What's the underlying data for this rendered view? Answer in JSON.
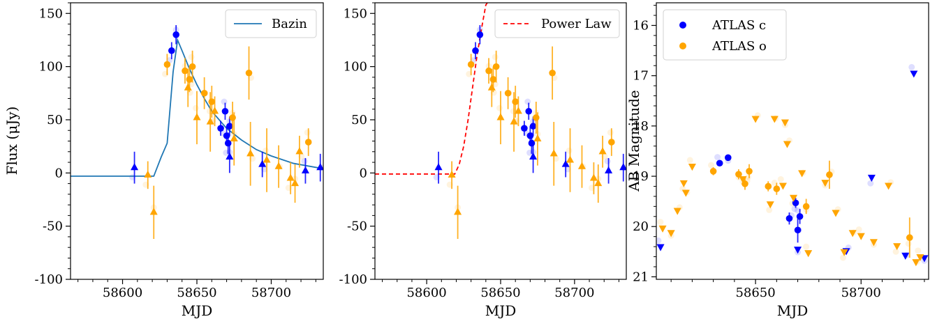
{
  "colors": {
    "atlas_c": "#0000ff",
    "atlas_o": "#ffa500",
    "bazin": "#1f77b4",
    "power_law": "#ff0000"
  },
  "chart_data": [
    {
      "type": "scatter",
      "xlabel": "MJD",
      "ylabel": "Flux (μJy)",
      "xlim": [
        58565,
        58735
      ],
      "ylim": [
        -100,
        160
      ],
      "xticks": [
        58600,
        58650,
        58700
      ],
      "yticks": [
        -100,
        -50,
        0,
        50,
        100,
        150
      ],
      "legend": {
        "position": "top-right",
        "entries": [
          "Bazin"
        ]
      },
      "model": {
        "name": "Bazin",
        "style": "solid",
        "color": "#1f77b4",
        "x": [
          58565,
          58580,
          58600,
          58615,
          58621,
          58626,
          58630,
          58634,
          58637,
          58640,
          58645,
          58650,
          58655,
          58660,
          58670,
          58680,
          58690,
          58700,
          58715,
          58735
        ],
        "y": [
          -3,
          -3,
          -3,
          -3,
          -3,
          15,
          28,
          95,
          125,
          115,
          98,
          83,
          70,
          58,
          42,
          31,
          22,
          16,
          9,
          4
        ]
      },
      "series": [
        {
          "name": "ATLAS c",
          "color": "#0000ff",
          "marker": "circle",
          "points": [
            {
              "x": 58633,
              "y": 115,
              "err": 8
            },
            {
              "x": 58636,
              "y": 130,
              "err": 9
            },
            {
              "x": 58666,
              "y": 42,
              "err": 7
            },
            {
              "x": 58669,
              "y": 58,
              "err": 8
            },
            {
              "x": 58670,
              "y": 35,
              "err": 9
            },
            {
              "x": 58671,
              "y": 28,
              "err": 10
            },
            {
              "x": 58672,
              "y": 44,
              "err": 9
            }
          ]
        },
        {
          "name": "ATLAS c upper limits",
          "color": "#0000ff",
          "marker": "triangle",
          "points": [
            {
              "x": 58608,
              "y": 5,
              "err": 15
            },
            {
              "x": 58672,
              "y": 15,
              "err": 15
            },
            {
              "x": 58694,
              "y": 8,
              "err": 12
            },
            {
              "x": 58723,
              "y": 2,
              "err": 12
            },
            {
              "x": 58733,
              "y": 5,
              "err": 13
            }
          ]
        },
        {
          "name": "ATLAS o",
          "color": "#ffa500",
          "marker": "circle",
          "points": [
            {
              "x": 58630,
              "y": 102,
              "err": 10
            },
            {
              "x": 58642,
              "y": 96,
              "err": 12
            },
            {
              "x": 58645,
              "y": 88,
              "err": 12
            },
            {
              "x": 58647,
              "y": 100,
              "err": 15
            },
            {
              "x": 58655,
              "y": 75,
              "err": 15
            },
            {
              "x": 58660,
              "y": 67,
              "err": 15
            },
            {
              "x": 58674,
              "y": 52,
              "err": 15
            },
            {
              "x": 58685,
              "y": 94,
              "err": 25
            },
            {
              "x": 58725,
              "y": 29,
              "err": 13
            }
          ]
        },
        {
          "name": "ATLAS o upper limits",
          "color": "#ffa500",
          "marker": "triangle",
          "points": [
            {
              "x": 58617,
              "y": -2,
              "err": 13
            },
            {
              "x": 58621,
              "y": -37,
              "err": 25
            },
            {
              "x": 58644,
              "y": 80,
              "err": 18
            },
            {
              "x": 58650,
              "y": 52,
              "err": 25
            },
            {
              "x": 58659,
              "y": 48,
              "err": 28
            },
            {
              "x": 58662,
              "y": 58,
              "err": 14
            },
            {
              "x": 58675,
              "y": 32,
              "err": 25
            },
            {
              "x": 58686,
              "y": 18,
              "err": 30
            },
            {
              "x": 58697,
              "y": 12,
              "err": 30
            },
            {
              "x": 58705,
              "y": 6,
              "err": 20
            },
            {
              "x": 58713,
              "y": -5,
              "err": 15
            },
            {
              "x": 58716,
              "y": -10,
              "err": 18
            },
            {
              "x": 58719,
              "y": 20,
              "err": 15
            }
          ]
        }
      ]
    },
    {
      "type": "scatter",
      "xlabel": "MJD",
      "ylabel": "",
      "xlim": [
        58565,
        58735
      ],
      "ylim": [
        -100,
        160
      ],
      "xticks": [
        58600,
        58650,
        58700
      ],
      "yticks": [
        -100,
        -50,
        0,
        50,
        100,
        150
      ],
      "legend": {
        "position": "top-right",
        "entries": [
          "Power Law"
        ]
      },
      "model": {
        "name": "Power Law",
        "style": "dashed",
        "color": "#ff0000",
        "x": [
          58565,
          58590,
          58610,
          58619,
          58622,
          58625,
          58628,
          58631,
          58634,
          58637,
          58640,
          58641
        ],
        "y": [
          -1,
          -1,
          -1,
          -1,
          8,
          25,
          50,
          80,
          110,
          135,
          158,
          160
        ]
      },
      "series": [
        {
          "name": "ATLAS c",
          "color": "#0000ff",
          "marker": "circle",
          "points": [
            {
              "x": 58633,
              "y": 115,
              "err": 8
            },
            {
              "x": 58636,
              "y": 130,
              "err": 9
            },
            {
              "x": 58666,
              "y": 42,
              "err": 7
            },
            {
              "x": 58669,
              "y": 58,
              "err": 8
            },
            {
              "x": 58670,
              "y": 35,
              "err": 9
            },
            {
              "x": 58671,
              "y": 28,
              "err": 10
            },
            {
              "x": 58672,
              "y": 44,
              "err": 9
            }
          ]
        },
        {
          "name": "ATLAS c upper limits",
          "color": "#0000ff",
          "marker": "triangle",
          "points": [
            {
              "x": 58608,
              "y": 5,
              "err": 15
            },
            {
              "x": 58672,
              "y": 15,
              "err": 15
            },
            {
              "x": 58694,
              "y": 8,
              "err": 12
            },
            {
              "x": 58723,
              "y": 2,
              "err": 12
            },
            {
              "x": 58733,
              "y": 5,
              "err": 13
            }
          ]
        },
        {
          "name": "ATLAS o",
          "color": "#ffa500",
          "marker": "circle",
          "points": [
            {
              "x": 58630,
              "y": 102,
              "err": 10
            },
            {
              "x": 58642,
              "y": 96,
              "err": 12
            },
            {
              "x": 58645,
              "y": 88,
              "err": 12
            },
            {
              "x": 58647,
              "y": 100,
              "err": 15
            },
            {
              "x": 58655,
              "y": 75,
              "err": 15
            },
            {
              "x": 58660,
              "y": 67,
              "err": 15
            },
            {
              "x": 58674,
              "y": 52,
              "err": 15
            },
            {
              "x": 58685,
              "y": 94,
              "err": 25
            },
            {
              "x": 58725,
              "y": 29,
              "err": 13
            }
          ]
        },
        {
          "name": "ATLAS o upper limits",
          "color": "#ffa500",
          "marker": "triangle",
          "points": [
            {
              "x": 58617,
              "y": -2,
              "err": 13
            },
            {
              "x": 58621,
              "y": -37,
              "err": 25
            },
            {
              "x": 58644,
              "y": 80,
              "err": 18
            },
            {
              "x": 58650,
              "y": 52,
              "err": 25
            },
            {
              "x": 58659,
              "y": 48,
              "err": 28
            },
            {
              "x": 58662,
              "y": 58,
              "err": 14
            },
            {
              "x": 58675,
              "y": 32,
              "err": 25
            },
            {
              "x": 58686,
              "y": 18,
              "err": 30
            },
            {
              "x": 58697,
              "y": 12,
              "err": 30
            },
            {
              "x": 58705,
              "y": 6,
              "err": 20
            },
            {
              "x": 58713,
              "y": -5,
              "err": 15
            },
            {
              "x": 58716,
              "y": -10,
              "err": 18
            },
            {
              "x": 58719,
              "y": 20,
              "err": 15
            }
          ]
        }
      ]
    },
    {
      "type": "scatter",
      "xlabel": "MJD",
      "ylabel": "AB Magnitude",
      "xlim": [
        58603,
        58732
      ],
      "ylim": [
        21.05,
        15.55
      ],
      "y_inverted": true,
      "xticks": [
        58650,
        58700
      ],
      "yticks": [
        16,
        17,
        18,
        19,
        20,
        21
      ],
      "legend": {
        "position": "top-left",
        "entries": [
          "ATLAS c",
          "ATLAS o"
        ]
      },
      "series": [
        {
          "name": "ATLAS c",
          "color": "#0000ff",
          "marker": "circle",
          "points": [
            {
              "x": 58633,
              "y": 18.74,
              "err": 0.06
            },
            {
              "x": 58637,
              "y": 18.63,
              "err": 0.06
            },
            {
              "x": 58666,
              "y": 19.84,
              "err": 0.12
            },
            {
              "x": 58669,
              "y": 19.53,
              "err": 0.1
            },
            {
              "x": 58670,
              "y": 20.07,
              "err": 0.25
            },
            {
              "x": 58671,
              "y": 19.8,
              "err": 0.15
            }
          ]
        },
        {
          "name": "ATLAS c upper limits",
          "color": "#0000ff",
          "marker": "triangle-down",
          "points": [
            {
              "x": 58605,
              "y": 20.4
            },
            {
              "x": 58670,
              "y": 20.45
            },
            {
              "x": 58693,
              "y": 20.48
            },
            {
              "x": 58705,
              "y": 19.02
            },
            {
              "x": 58721,
              "y": 20.57
            },
            {
              "x": 58725,
              "y": 16.95
            },
            {
              "x": 58730,
              "y": 20.62
            }
          ]
        },
        {
          "name": "ATLAS o",
          "color": "#ffa500",
          "marker": "circle",
          "points": [
            {
              "x": 58630,
              "y": 18.9,
              "err": 0.08
            },
            {
              "x": 58642,
              "y": 18.96,
              "err": 0.1
            },
            {
              "x": 58645,
              "y": 19.15,
              "err": 0.12
            },
            {
              "x": 58647,
              "y": 18.9,
              "err": 0.14
            },
            {
              "x": 58656,
              "y": 19.2,
              "err": 0.1
            },
            {
              "x": 58660,
              "y": 19.25,
              "err": 0.12
            },
            {
              "x": 58674,
              "y": 19.6,
              "err": 0.15
            },
            {
              "x": 58685,
              "y": 18.97,
              "err": 0.28
            },
            {
              "x": 58723,
              "y": 20.22,
              "err": 0.4
            }
          ]
        },
        {
          "name": "ATLAS o upper limits",
          "color": "#ffa500",
          "marker": "triangle-down",
          "points": [
            {
              "x": 58606,
              "y": 20.03
            },
            {
              "x": 58610,
              "y": 20.12
            },
            {
              "x": 58613,
              "y": 19.68
            },
            {
              "x": 58616,
              "y": 19.13
            },
            {
              "x": 58617,
              "y": 19.32
            },
            {
              "x": 58620,
              "y": 18.8
            },
            {
              "x": 58644,
              "y": 19.05
            },
            {
              "x": 58650,
              "y": 17.85
            },
            {
              "x": 58657,
              "y": 19.55
            },
            {
              "x": 58659,
              "y": 17.85
            },
            {
              "x": 58663,
              "y": 19.18
            },
            {
              "x": 58664,
              "y": 17.92
            },
            {
              "x": 58665,
              "y": 18.35
            },
            {
              "x": 58668,
              "y": 19.42
            },
            {
              "x": 58672,
              "y": 18.93
            },
            {
              "x": 58675,
              "y": 20.52
            },
            {
              "x": 58683,
              "y": 19.12
            },
            {
              "x": 58688,
              "y": 19.72
            },
            {
              "x": 58692,
              "y": 20.5
            },
            {
              "x": 58696,
              "y": 20.12
            },
            {
              "x": 58700,
              "y": 20.18
            },
            {
              "x": 58706,
              "y": 20.3
            },
            {
              "x": 58713,
              "y": 19.18
            },
            {
              "x": 58717,
              "y": 20.38
            },
            {
              "x": 58726,
              "y": 20.7
            },
            {
              "x": 58728,
              "y": 20.6
            }
          ]
        }
      ]
    }
  ]
}
